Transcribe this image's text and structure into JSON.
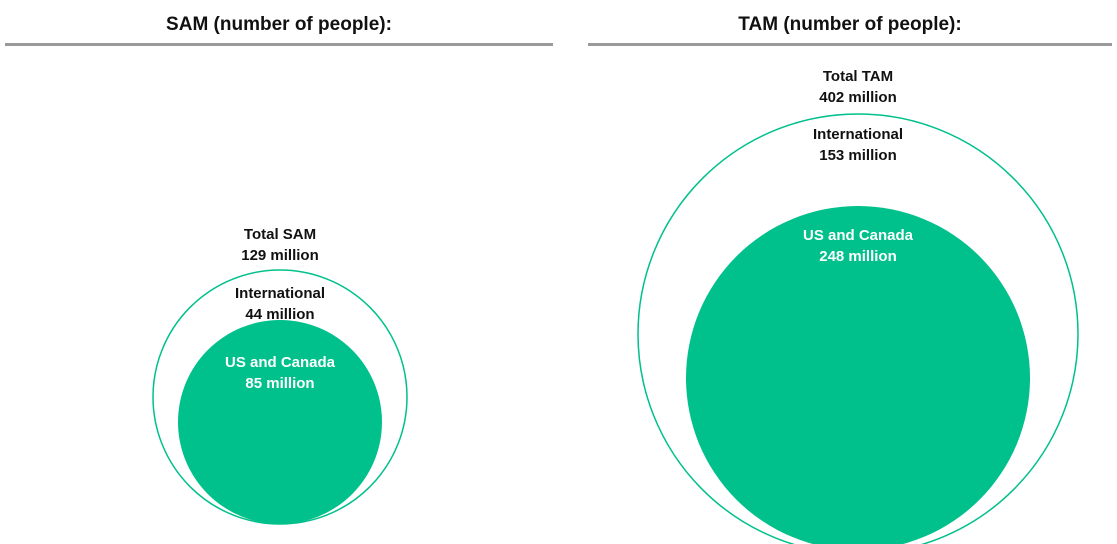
{
  "colors": {
    "fill": "#00c08b",
    "outline": "#00c08b",
    "rule": "#9a9a9a",
    "dark_text": "#111111",
    "light_text": "#ffffff"
  },
  "chart_data": [
    {
      "type": "nested-circles",
      "title": "SAM (number of people):",
      "unit": "million",
      "total": {
        "label": "Total SAM",
        "value": 129,
        "display": "129 million"
      },
      "segments": [
        {
          "name": "International",
          "value": 44,
          "display": "44 million",
          "style": "outline"
        },
        {
          "name": "US and Canada",
          "value": 85,
          "display": "85 million",
          "style": "filled"
        }
      ]
    },
    {
      "type": "nested-circles",
      "title": "TAM (number of people):",
      "unit": "million",
      "total": {
        "label": "Total TAM",
        "value": 402,
        "display": "402 million"
      },
      "segments": [
        {
          "name": "International",
          "value": 153,
          "display": "153 million",
          "style": "outline"
        },
        {
          "name": "US and Canada",
          "value": 248,
          "display": "248 million",
          "style": "filled"
        }
      ]
    }
  ]
}
